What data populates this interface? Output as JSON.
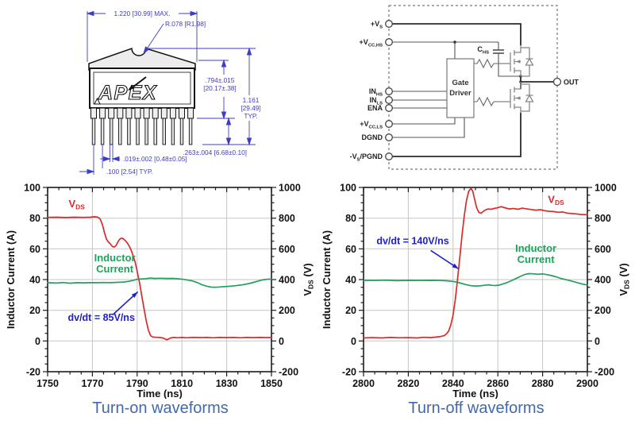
{
  "page": {
    "bg": "#ffffff",
    "caption_color": "#4169ad"
  },
  "package_drawing": {
    "logo": "APEX",
    "dim_color": "#3d3dc6",
    "labels": {
      "width": "1.220  [30.99]  MAX.",
      "radius": "R.078  [R1.98]",
      "body_h1": ".794±.015",
      "body_h2": "[20.17±.38]",
      "total_h1": "1.161",
      "total_h2": "[29.49]",
      "total_h3": "TYP.",
      "pin_len": ".263±.004  [6.68±0.10]",
      "pin_w": ".019±.002  [0.48±0.05]",
      "pitch": ".100  [2.54]  TYP."
    }
  },
  "circuit": {
    "pins": [
      {
        "name": "vs",
        "segs": [
          {
            "t": "+V"
          },
          {
            "s": "S"
          }
        ]
      },
      {
        "name": "vcchs",
        "segs": [
          {
            "t": "+V"
          },
          {
            "s": "CC,HS"
          }
        ]
      },
      {
        "name": "inhs",
        "segs": [
          {
            "t": "IN"
          },
          {
            "s": "HS"
          }
        ]
      },
      {
        "name": "inls",
        "segs": [
          {
            "t": "IN"
          },
          {
            "s": "LS"
          }
        ]
      },
      {
        "name": "ena",
        "segs": [
          {
            "t": "ENA"
          }
        ]
      },
      {
        "name": "vccls",
        "segs": [
          {
            "t": "+V"
          },
          {
            "s": "CC,LS"
          }
        ]
      },
      {
        "name": "dgnd",
        "segs": [
          {
            "t": "DGND"
          }
        ]
      },
      {
        "name": "pgnd",
        "segs": [
          {
            "t": "-V"
          },
          {
            "s": "S"
          },
          {
            "t": "/PGND"
          }
        ]
      }
    ],
    "gate_driver": [
      "Gate",
      "Driver"
    ],
    "cap_label": [
      {
        "t": "C"
      },
      {
        "s": "HS"
      }
    ],
    "out": "OUT"
  },
  "chart_data": [
    {
      "type": "line",
      "caption": "Turn-on waveforms",
      "xlabel": "Time (ns)",
      "ylabel_left": "Inductor Current (A)",
      "ylabel_right": [
        {
          "t": "V"
        },
        {
          "s": "DS"
        },
        {
          "t": " (V)"
        }
      ],
      "xlim": [
        1750,
        1850
      ],
      "xticks": [
        1750,
        1770,
        1790,
        1810,
        1830,
        1850
      ],
      "x_minor_step": 5,
      "ylim_left": [
        -20,
        100
      ],
      "yticks_left": [
        -20,
        0,
        20,
        40,
        60,
        80,
        100
      ],
      "y_minor_step_left": 5,
      "ylim_right": [
        -200,
        1000
      ],
      "yticks_right": [
        -200,
        0,
        200,
        400,
        600,
        800,
        1000
      ],
      "grid": true,
      "series": [
        {
          "name": "VDS",
          "axis": "right",
          "color": "#d92b2b",
          "label_segs": [
            {
              "t": "V"
            },
            {
              "s": "DS"
            }
          ],
          "label_pos": [
            1763,
            87
          ],
          "points": [
            [
              1750,
              805
            ],
            [
              1754,
              806
            ],
            [
              1758,
              804
            ],
            [
              1762,
              806
            ],
            [
              1766,
              805
            ],
            [
              1769,
              806
            ],
            [
              1771,
              809
            ],
            [
              1772.5,
              806
            ],
            [
              1773.5,
              793
            ],
            [
              1774.5,
              757
            ],
            [
              1775.5,
              700
            ],
            [
              1776.3,
              662
            ],
            [
              1777,
              648
            ],
            [
              1778,
              632
            ],
            [
              1779,
              614
            ],
            [
              1779.8,
              612
            ],
            [
              1780.6,
              622
            ],
            [
              1781.4,
              645
            ],
            [
              1782.2,
              663
            ],
            [
              1783,
              670
            ],
            [
              1783.8,
              666
            ],
            [
              1784.6,
              655
            ],
            [
              1785.5,
              640
            ],
            [
              1786.4,
              620
            ],
            [
              1787.3,
              592
            ],
            [
              1788.2,
              556
            ],
            [
              1789.1,
              512
            ],
            [
              1790,
              455
            ],
            [
              1791,
              385
            ],
            [
              1792,
              300
            ],
            [
              1793,
              215
            ],
            [
              1794,
              135
            ],
            [
              1795,
              72
            ],
            [
              1796,
              35
            ],
            [
              1797,
              26
            ],
            [
              1798.5,
              24
            ],
            [
              1800,
              23
            ],
            [
              1801.5,
              20
            ],
            [
              1802.5,
              13
            ],
            [
              1803.3,
              8
            ],
            [
              1804.2,
              14
            ],
            [
              1805,
              20
            ],
            [
              1806.5,
              23
            ],
            [
              1808,
              21
            ],
            [
              1810,
              23
            ],
            [
              1812,
              21
            ],
            [
              1815,
              23
            ],
            [
              1818,
              22
            ],
            [
              1821,
              23
            ],
            [
              1824,
              21
            ],
            [
              1827,
              23
            ],
            [
              1830,
              22
            ],
            [
              1833,
              23
            ],
            [
              1836,
              21
            ],
            [
              1839,
              23
            ],
            [
              1842,
              22
            ],
            [
              1845,
              23
            ],
            [
              1848,
              22
            ],
            [
              1850,
              23
            ]
          ]
        },
        {
          "name": "Inductor Current",
          "axis": "left",
          "color": "#21a15c",
          "label_lines": [
            "Inductor",
            "Current"
          ],
          "label_pos": [
            1780,
            52
          ],
          "points": [
            [
              1750,
              38
            ],
            [
              1754,
              37.7
            ],
            [
              1757,
              38.1
            ],
            [
              1760,
              37.6
            ],
            [
              1763,
              38
            ],
            [
              1766,
              37.9
            ],
            [
              1769,
              38
            ],
            [
              1772,
              38
            ],
            [
              1775,
              38.1
            ],
            [
              1778,
              38
            ],
            [
              1781,
              38.2
            ],
            [
              1784,
              38.4
            ],
            [
              1786,
              38.8
            ],
            [
              1788,
              39.4
            ],
            [
              1790,
              40.2
            ],
            [
              1792,
              40.4
            ],
            [
              1794,
              40.6
            ],
            [
              1796,
              41
            ],
            [
              1798,
              40.7
            ],
            [
              1800,
              40.9
            ],
            [
              1803,
              40.7
            ],
            [
              1806,
              40.8
            ],
            [
              1809,
              40.4
            ],
            [
              1811,
              40.1
            ],
            [
              1813,
              39.6
            ],
            [
              1815,
              39
            ],
            [
              1817,
              38
            ],
            [
              1819,
              36.6
            ],
            [
              1821,
              35.7
            ],
            [
              1823,
              35.1
            ],
            [
              1825,
              35
            ],
            [
              1827,
              35.2
            ],
            [
              1829,
              35.4
            ],
            [
              1831,
              35.6
            ],
            [
              1834,
              36
            ],
            [
              1837,
              36.6
            ],
            [
              1840,
              37.4
            ],
            [
              1842,
              38.2
            ],
            [
              1844,
              39
            ],
            [
              1846,
              39.8
            ],
            [
              1848,
              40.2
            ],
            [
              1850,
              40.3
            ]
          ]
        }
      ],
      "annotation": {
        "text": "dv/dt = 85V/ns",
        "color": "#2020cc",
        "text_pos": [
          1774,
          13
        ],
        "arrow_from": [
          1779,
          17
        ],
        "arrow_to": [
          1790.3,
          32
        ]
      }
    },
    {
      "type": "line",
      "caption": "Turn-off waveforms",
      "xlabel": "Time (ns)",
      "ylabel_left": "Inductor Current (A)",
      "ylabel_right": [
        {
          "t": "V"
        },
        {
          "s": "DS"
        },
        {
          "t": " (V)"
        }
      ],
      "xlim": [
        2800,
        2900
      ],
      "xticks": [
        2800,
        2820,
        2840,
        2860,
        2880,
        2900
      ],
      "x_minor_step": 5,
      "ylim_left": [
        -20,
        100
      ],
      "yticks_left": [
        -20,
        0,
        20,
        40,
        60,
        80,
        100
      ],
      "y_minor_step_left": 5,
      "ylim_right": [
        -200,
        1000
      ],
      "yticks_right": [
        -200,
        0,
        200,
        400,
        600,
        800,
        1000
      ],
      "grid": true,
      "series": [
        {
          "name": "VDS",
          "axis": "right",
          "color": "#d92b2b",
          "label_segs": [
            {
              "t": "V"
            },
            {
              "s": "DS"
            }
          ],
          "label_pos": [
            2886,
            90
          ],
          "points": [
            [
              2800,
              20
            ],
            [
              2804,
              22
            ],
            [
              2808,
              20
            ],
            [
              2812,
              23
            ],
            [
              2816,
              21
            ],
            [
              2820,
              22
            ],
            [
              2824,
              20
            ],
            [
              2827,
              24
            ],
            [
              2830,
              22
            ],
            [
              2832,
              25
            ],
            [
              2834,
              28
            ],
            [
              2836,
              35
            ],
            [
              2837,
              45
            ],
            [
              2838,
              65
            ],
            [
              2839,
              105
            ],
            [
              2840,
              170
            ],
            [
              2841,
              270
            ],
            [
              2842,
              400
            ],
            [
              2843,
              545
            ],
            [
              2844,
              690
            ],
            [
              2845,
              815
            ],
            [
              2846,
              915
            ],
            [
              2847,
              975
            ],
            [
              2848,
              995
            ],
            [
              2848.8,
              975
            ],
            [
              2849.5,
              930
            ],
            [
              2850.5,
              870
            ],
            [
              2851.5,
              838
            ],
            [
              2852.5,
              832
            ],
            [
              2854,
              850
            ],
            [
              2855.5,
              860
            ],
            [
              2857,
              858
            ],
            [
              2858.5,
              864
            ],
            [
              2860,
              868
            ],
            [
              2861.5,
              875
            ],
            [
              2863,
              868
            ],
            [
              2865,
              860
            ],
            [
              2867,
              863
            ],
            [
              2869,
              858
            ],
            [
              2871,
              865
            ],
            [
              2873,
              860
            ],
            [
              2875,
              856
            ],
            [
              2877,
              852
            ],
            [
              2879,
              855
            ],
            [
              2881,
              848
            ],
            [
              2883,
              845
            ],
            [
              2885,
              843
            ],
            [
              2887,
              838
            ],
            [
              2889,
              840
            ],
            [
              2891,
              833
            ],
            [
              2893,
              830
            ],
            [
              2895,
              828
            ],
            [
              2897,
              824
            ],
            [
              2899,
              823
            ],
            [
              2900,
              822
            ]
          ]
        },
        {
          "name": "Inductor Current",
          "axis": "left",
          "color": "#21a15c",
          "label_lines": [
            "Inductor",
            "Current"
          ],
          "label_pos": [
            2877,
            58
          ],
          "points": [
            [
              2800,
              39.5
            ],
            [
              2805,
              39.4
            ],
            [
              2810,
              39.6
            ],
            [
              2815,
              39.3
            ],
            [
              2820,
              39.5
            ],
            [
              2825,
              39.4
            ],
            [
              2830,
              39.5
            ],
            [
              2834,
              39.4
            ],
            [
              2837,
              39.2
            ],
            [
              2840,
              38.8
            ],
            [
              2842,
              38.2
            ],
            [
              2844,
              37.4
            ],
            [
              2846,
              36.6
            ],
            [
              2848,
              36
            ],
            [
              2850,
              35.8
            ],
            [
              2852,
              35.9
            ],
            [
              2854,
              36.3
            ],
            [
              2856,
              36.6
            ],
            [
              2857.5,
              36.2
            ],
            [
              2859,
              36.1
            ],
            [
              2860.5,
              36.4
            ],
            [
              2862,
              37
            ],
            [
              2864,
              38
            ],
            [
              2866,
              39.2
            ],
            [
              2868,
              40.6
            ],
            [
              2870,
              42
            ],
            [
              2872,
              43.3
            ],
            [
              2874,
              43.9
            ],
            [
              2876,
              43.7
            ],
            [
              2878,
              43.4
            ],
            [
              2880,
              43.7
            ],
            [
              2882,
              43.2
            ],
            [
              2884,
              42.6
            ],
            [
              2886,
              41.8
            ],
            [
              2888,
              40.8
            ],
            [
              2890,
              40.1
            ],
            [
              2892,
              39.4
            ],
            [
              2894,
              38.6
            ],
            [
              2896,
              37.8
            ],
            [
              2898,
              37
            ],
            [
              2900,
              36.5
            ]
          ]
        }
      ],
      "annotation": {
        "text": "dv/dt = 140V/ns",
        "color": "#2020cc",
        "text_pos": [
          2822,
          63
        ],
        "arrow_from": [
          2830,
          59
        ],
        "arrow_to": [
          2842.5,
          47
        ]
      }
    }
  ]
}
